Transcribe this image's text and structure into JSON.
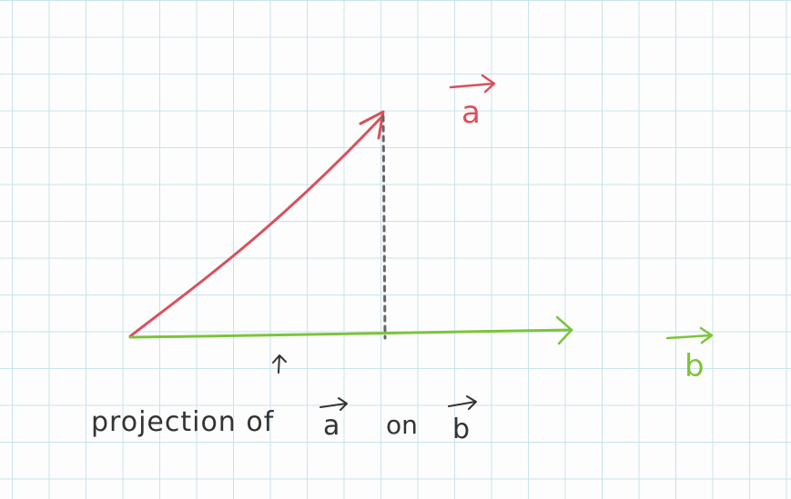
{
  "diagram": {
    "vector_a": {
      "label": "a",
      "color": "#d9505c"
    },
    "vector_b": {
      "label": "b",
      "color": "#7cc43a"
    },
    "projection_line": {
      "color": "#666666",
      "style": "dotted"
    },
    "caption": {
      "prefix": "projection of",
      "vector": "a",
      "connector": "on",
      "target": "b",
      "color": "#333333"
    },
    "grid": {
      "color": "#c9e3ec"
    }
  }
}
